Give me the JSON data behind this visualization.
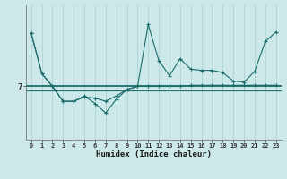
{
  "xlabel": "Humidex (Indice chaleur)",
  "bg_color": "#cce8e8",
  "line_color": "#1a6b6b",
  "grid_color": "#aad4d4",
  "hline_color": "#c0dcdc",
  "x_values": [
    0,
    1,
    2,
    3,
    4,
    5,
    6,
    7,
    8,
    9,
    10,
    11,
    12,
    13,
    14,
    15,
    16,
    17,
    18,
    19,
    20,
    21,
    22,
    23
  ],
  "series1": [
    9.5,
    7.6,
    7.0,
    6.3,
    6.3,
    6.55,
    6.2,
    5.75,
    6.4,
    6.85,
    7.0,
    9.9,
    8.2,
    7.5,
    8.3,
    7.8,
    7.75,
    7.75,
    7.65,
    7.25,
    7.2,
    7.7,
    9.1,
    9.55
  ],
  "series2": [
    9.5,
    7.6,
    7.0,
    6.3,
    6.3,
    6.5,
    6.45,
    6.3,
    6.55,
    6.85,
    7.0,
    7.0,
    7.0,
    7.0,
    7.0,
    7.05,
    7.05,
    7.05,
    7.05,
    7.05,
    7.05,
    7.05,
    7.05,
    7.05
  ],
  "flat1": 7.0,
  "flat2": 6.82,
  "ylim": [
    4.5,
    10.8
  ],
  "y_tick_val": 7,
  "figsize": [
    3.2,
    2.0
  ],
  "dpi": 100
}
